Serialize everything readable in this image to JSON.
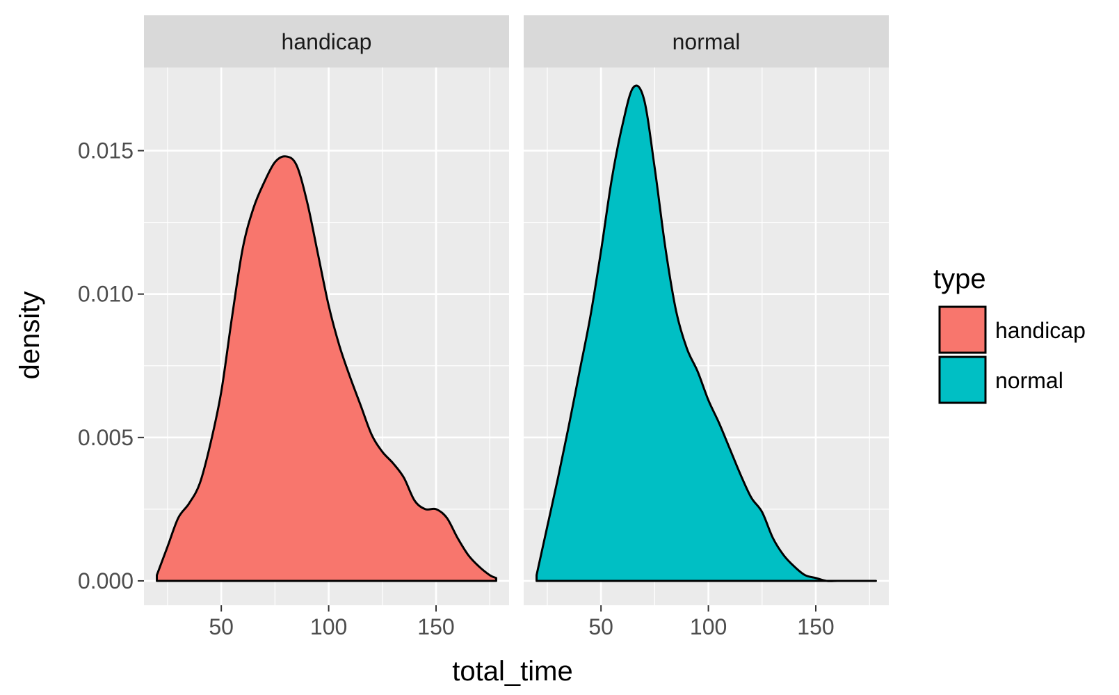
{
  "chart_data": {
    "type": "area",
    "facet_variable": "type",
    "x": [
      20,
      25,
      30,
      35,
      40,
      45,
      50,
      55,
      60,
      65,
      70,
      75,
      80,
      85,
      90,
      95,
      100,
      105,
      110,
      115,
      120,
      125,
      130,
      135,
      140,
      145,
      150,
      155,
      160,
      165,
      170,
      175,
      178
    ],
    "series": [
      {
        "name": "handicap",
        "values": [
          0.0002,
          0.0012,
          0.0022,
          0.0027,
          0.0034,
          0.0048,
          0.0066,
          0.0092,
          0.0116,
          0.013,
          0.0139,
          0.0146,
          0.0148,
          0.0145,
          0.0132,
          0.0114,
          0.0096,
          0.0082,
          0.0071,
          0.0061,
          0.0051,
          0.0045,
          0.0041,
          0.0036,
          0.0028,
          0.0025,
          0.0025,
          0.0022,
          0.0015,
          0.0009,
          0.0005,
          0.0002,
          0.0001
        ]
      },
      {
        "name": "normal",
        "values": [
          0.0002,
          0.0019,
          0.0036,
          0.0054,
          0.0073,
          0.0092,
          0.0115,
          0.014,
          0.0159,
          0.0172,
          0.0168,
          0.0144,
          0.0116,
          0.0094,
          0.0081,
          0.0073,
          0.0063,
          0.0055,
          0.0046,
          0.0037,
          0.0029,
          0.0024,
          0.0015,
          0.0009,
          0.0005,
          0.0002,
          0.0001,
          0.0,
          0.0,
          0.0,
          0.0,
          0.0,
          0.0
        ]
      }
    ],
    "colors": {
      "handicap": "#F8766D",
      "normal": "#00BFC4",
      "outline": "#000000",
      "panel_bg": "#EBEBEB",
      "strip_bg": "#D9D9D9",
      "grid": "#FFFFFF"
    },
    "xlabel": "total_time",
    "ylabel": "density",
    "xlim": [
      14,
      184
    ],
    "ylim": [
      -0.00085,
      0.0179
    ],
    "x_ticks": [
      50,
      100,
      150
    ],
    "x_tick_labels": [
      "50",
      "100",
      "150"
    ],
    "y_ticks": [
      0,
      0.005,
      0.01,
      0.015
    ],
    "y_tick_labels": [
      "0.000",
      "0.005",
      "0.010",
      "0.015"
    ],
    "grid": true,
    "legend": {
      "title": "type",
      "position": "right",
      "entries": [
        "handicap",
        "normal"
      ]
    }
  }
}
